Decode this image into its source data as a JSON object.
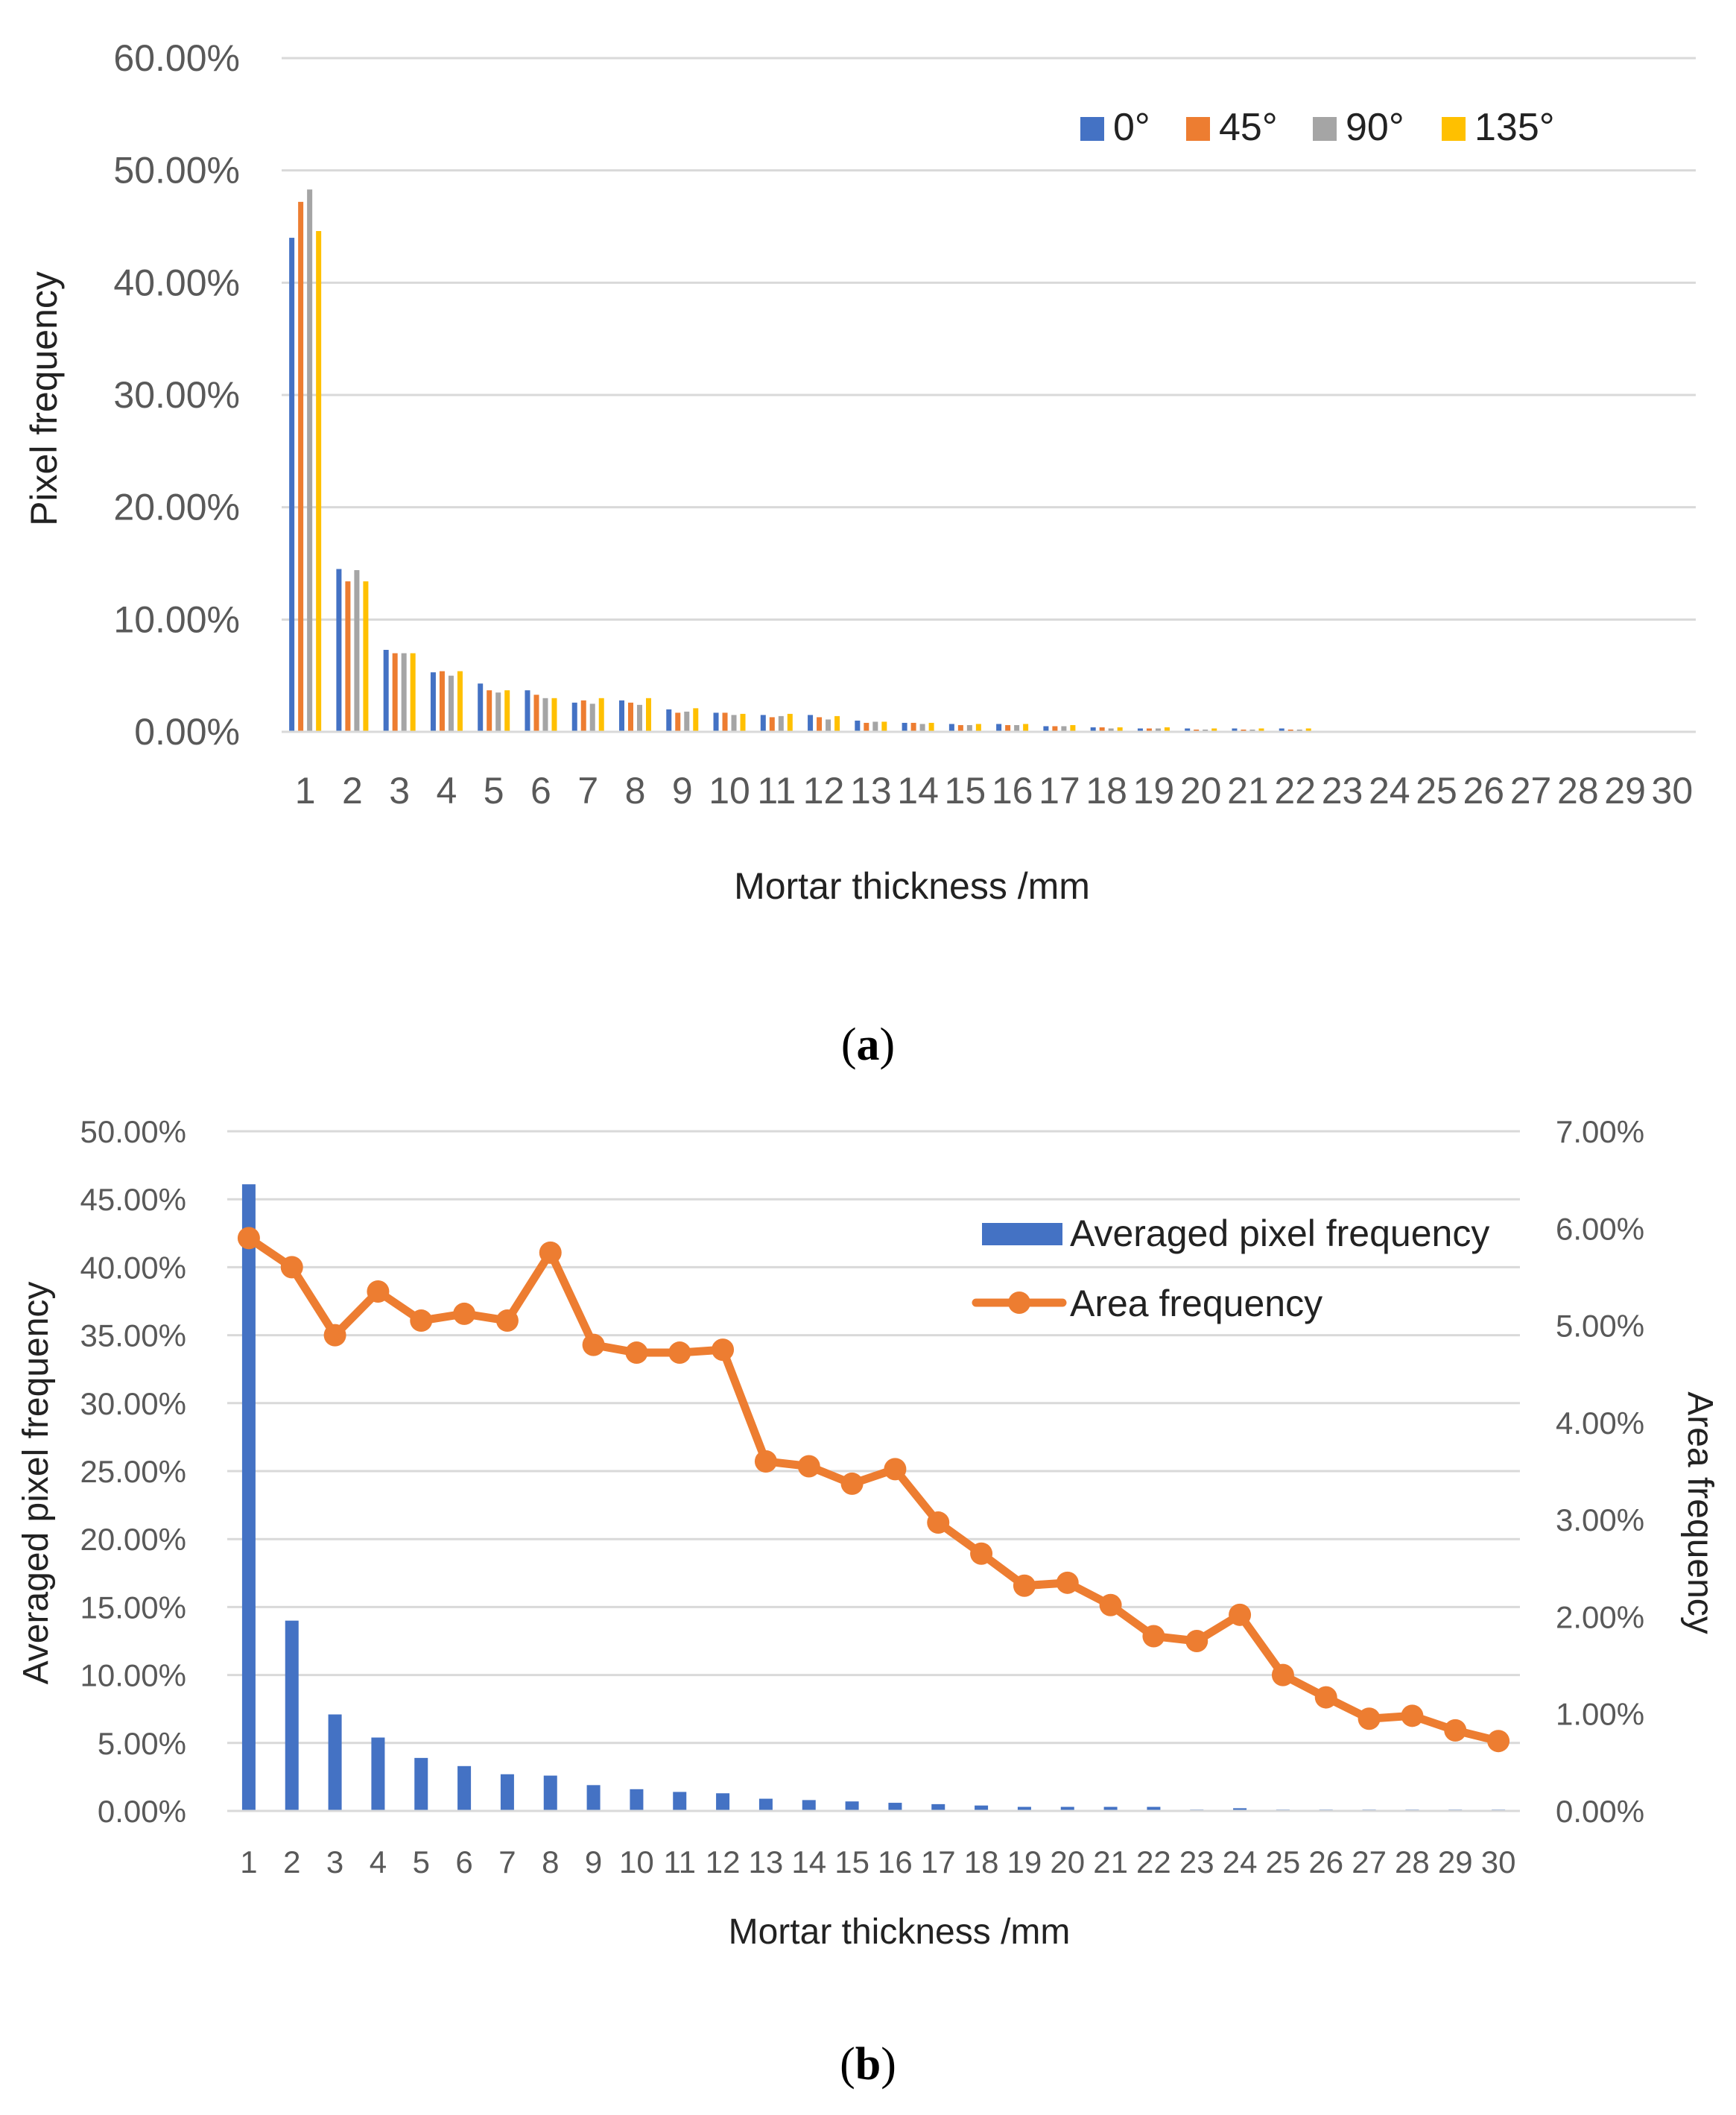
{
  "chart_data": [
    {
      "panel_label": "(a)",
      "panel_letter": "a",
      "type": "bar",
      "title": "",
      "xlabel": "Mortar thickness /mm",
      "ylabel": "Pixel frequency",
      "ylim": [
        0,
        60
      ],
      "yticks": [
        "0.00%",
        "10.00%",
        "20.00%",
        "30.00%",
        "40.00%",
        "50.00%",
        "60.00%"
      ],
      "grid": true,
      "legend_position": "top-right",
      "categories": [
        "1",
        "2",
        "3",
        "4",
        "5",
        "6",
        "7",
        "8",
        "9",
        "10",
        "11",
        "12",
        "13",
        "14",
        "15",
        "16",
        "17",
        "18",
        "19",
        "20",
        "21",
        "22",
        "23",
        "24",
        "25",
        "26",
        "27",
        "28",
        "29",
        "30"
      ],
      "series": [
        {
          "name": "0°",
          "color": "#4472C4",
          "values": [
            44.0,
            14.5,
            7.3,
            5.3,
            4.3,
            3.7,
            2.6,
            2.8,
            2.0,
            1.7,
            1.5,
            1.5,
            1.0,
            0.8,
            0.7,
            0.7,
            0.5,
            0.4,
            0.3,
            0.3,
            0.3,
            0.3,
            0.1,
            0.1,
            0.1,
            0.1,
            0.1,
            0.1,
            0.1,
            0.1
          ]
        },
        {
          "name": "45°",
          "color": "#ED7D31",
          "values": [
            47.2,
            13.4,
            7.0,
            5.4,
            3.7,
            3.3,
            2.8,
            2.6,
            1.7,
            1.7,
            1.3,
            1.3,
            0.8,
            0.8,
            0.6,
            0.6,
            0.5,
            0.4,
            0.3,
            0.2,
            0.2,
            0.2,
            0.1,
            0.1,
            0.1,
            0.1,
            0.1,
            0.1,
            0.1,
            0.1
          ]
        },
        {
          "name": "90°",
          "color": "#A5A5A5",
          "values": [
            48.3,
            14.4,
            7.0,
            5.0,
            3.5,
            3.0,
            2.5,
            2.4,
            1.8,
            1.5,
            1.4,
            1.1,
            0.9,
            0.7,
            0.6,
            0.6,
            0.5,
            0.3,
            0.3,
            0.2,
            0.2,
            0.2,
            0.1,
            0.1,
            0.1,
            0.1,
            0.1,
            0.1,
            0.1,
            0.1
          ]
        },
        {
          "name": "135°",
          "color": "#FFC000",
          "values": [
            44.6,
            13.4,
            7.0,
            5.4,
            3.7,
            3.0,
            3.0,
            3.0,
            2.1,
            1.6,
            1.6,
            1.4,
            0.9,
            0.8,
            0.7,
            0.7,
            0.6,
            0.4,
            0.4,
            0.3,
            0.3,
            0.3,
            0.1,
            0.1,
            0.1,
            0.1,
            0.1,
            0.1,
            0.1,
            0.1
          ]
        }
      ]
    },
    {
      "panel_label": "(b)",
      "panel_letter": "b",
      "type": "bar+line",
      "title": "",
      "xlabel": "Mortar thickness /mm",
      "ylabel": "Averaged pixel frequency",
      "y2label": "Area frequency",
      "ylim": [
        0,
        50
      ],
      "y2lim": [
        0,
        7
      ],
      "yticks": [
        "0.00%",
        "5.00%",
        "10.00%",
        "15.00%",
        "20.00%",
        "25.00%",
        "30.00%",
        "35.00%",
        "40.00%",
        "45.00%",
        "50.00%"
      ],
      "y2ticks": [
        "0.00%",
        "1.00%",
        "2.00%",
        "3.00%",
        "4.00%",
        "5.00%",
        "6.00%",
        "7.00%"
      ],
      "grid": true,
      "legend_position": "top-right",
      "categories": [
        "1",
        "2",
        "3",
        "4",
        "5",
        "6",
        "7",
        "8",
        "9",
        "10",
        "11",
        "12",
        "13",
        "14",
        "15",
        "16",
        "17",
        "18",
        "19",
        "20",
        "21",
        "22",
        "23",
        "24",
        "25",
        "26",
        "27",
        "28",
        "29",
        "30"
      ],
      "series": [
        {
          "name": "Averaged pixel frequency",
          "type": "bar",
          "axis": "left",
          "color": "#4472C4",
          "values": [
            46.1,
            14.0,
            7.1,
            5.4,
            3.9,
            3.3,
            2.7,
            2.6,
            1.9,
            1.6,
            1.4,
            1.3,
            0.9,
            0.8,
            0.7,
            0.6,
            0.5,
            0.4,
            0.3,
            0.3,
            0.3,
            0.3,
            0.1,
            0.2,
            0.1,
            0.1,
            0.1,
            0.1,
            0.1,
            0.1
          ]
        },
        {
          "name": "Area frequency",
          "type": "line",
          "axis": "right",
          "color": "#ED7D31",
          "values": [
            5.9,
            5.6,
            4.9,
            5.35,
            5.05,
            5.12,
            5.05,
            5.75,
            4.8,
            4.72,
            4.72,
            4.75,
            3.6,
            3.55,
            3.37,
            3.52,
            2.97,
            2.65,
            2.32,
            2.35,
            2.12,
            1.8,
            1.75,
            2.02,
            1.4,
            1.17,
            0.95,
            0.98,
            0.83,
            0.72
          ]
        }
      ]
    }
  ]
}
